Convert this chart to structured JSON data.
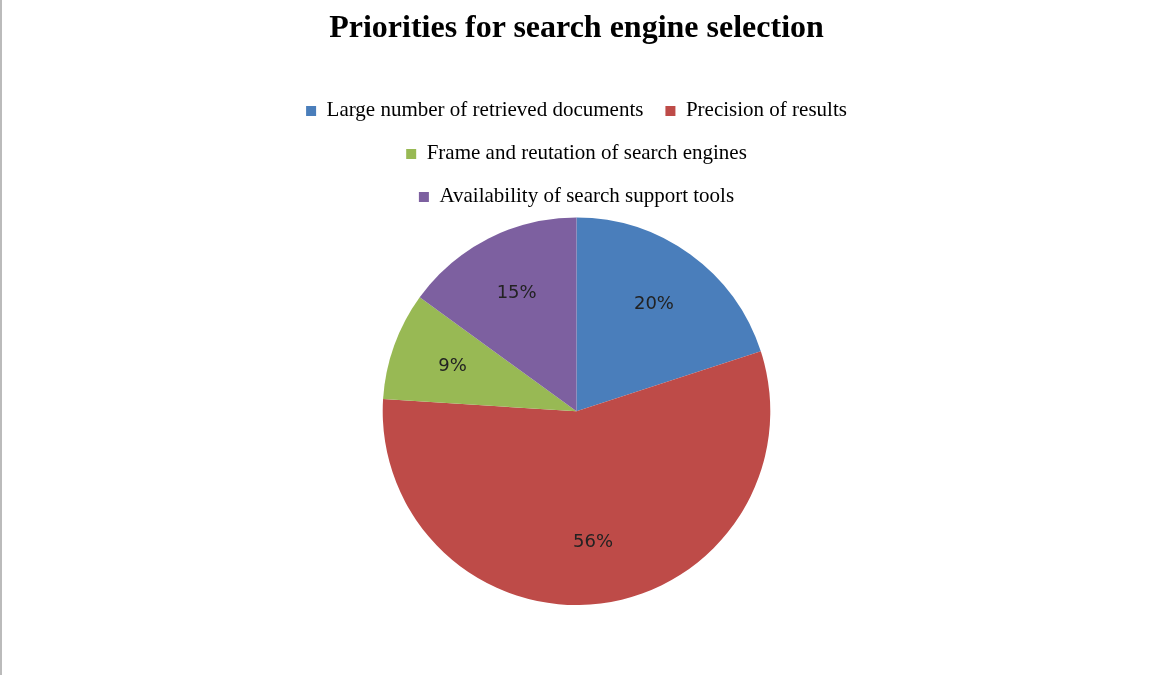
{
  "chart_data": {
    "type": "pie",
    "title": "Priorities for search engine selection",
    "categories": [
      "Large number of retrieved documents",
      "Precision of results",
      "Frame and reutation of search engines",
      "Availability of search support tools"
    ],
    "values": [
      20,
      56,
      9,
      15
    ],
    "colors": [
      "#4a7ebb",
      "#be4b48",
      "#98b954",
      "#7d60a0"
    ],
    "value_labels": [
      "20%",
      "56%",
      "9%",
      "15%"
    ],
    "legend": "top"
  }
}
